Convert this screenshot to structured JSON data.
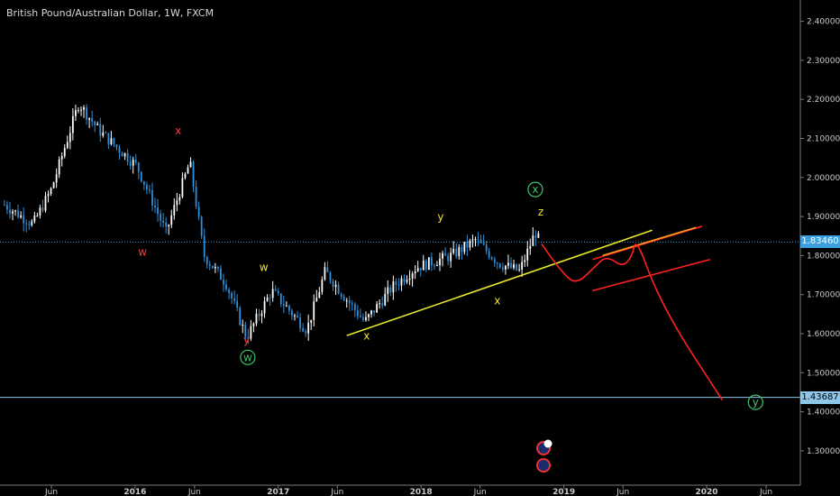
{
  "title": "British Pound/Australian Dollar, 1W, FXCM",
  "price_tags": {
    "current": "1.83460",
    "target": "1.43687"
  },
  "colors": {
    "background": "#000000",
    "candle_up": "#ffffff",
    "candle_down": "#2f8fd8",
    "wave_red": "#ff3b3b",
    "wave_yellow": "#f2e33a",
    "wave_green": "#3cc46a",
    "trendline": "#e6e62a",
    "projection": "#ff2020",
    "current_line": "#3aa0e0",
    "target_line": "#8ec7ea"
  },
  "chart_data": {
    "type": "candlestick",
    "timeframe": "1W",
    "x_ticks": [
      "Jun",
      "2016",
      "Jun",
      "2017",
      "Jun",
      "2018",
      "Jun",
      "2019",
      "Jun",
      "2020",
      "Jun"
    ],
    "y_ticks": [
      "2.40000",
      "2.30000",
      "2.20000",
      "2.10000",
      "2.00000",
      "1.90000",
      "1.80000",
      "1.70000",
      "1.60000",
      "1.50000",
      "1.40000",
      "1.30000"
    ],
    "ylim": [
      1.25,
      2.425
    ],
    "horizontal_lines": [
      1.8346,
      1.43687
    ],
    "price_path_anchors": [
      {
        "date": "2015-02-01",
        "price": 1.93
      },
      {
        "date": "2015-04-15",
        "price": 1.88
      },
      {
        "date": "2015-06-01",
        "price": 1.97
      },
      {
        "date": "2015-08-10",
        "price": 2.19
      },
      {
        "date": "2015-10-01",
        "price": 2.12
      },
      {
        "date": "2016-01-05",
        "price": 2.03
      },
      {
        "date": "2016-03-20",
        "price": 1.86
      },
      {
        "date": "2016-05-20",
        "price": 2.04
      },
      {
        "date": "2016-06-25",
        "price": 1.8
      },
      {
        "date": "2016-08-20",
        "price": 1.73
      },
      {
        "date": "2016-10-12",
        "price": 1.59
      },
      {
        "date": "2016-12-15",
        "price": 1.71
      },
      {
        "date": "2017-03-15",
        "price": 1.61
      },
      {
        "date": "2017-05-01",
        "price": 1.76
      },
      {
        "date": "2017-06-15",
        "price": 1.7
      },
      {
        "date": "2017-08-10",
        "price": 1.63
      },
      {
        "date": "2017-10-20",
        "price": 1.72
      },
      {
        "date": "2017-12-20",
        "price": 1.77
      },
      {
        "date": "2018-03-20",
        "price": 1.8
      },
      {
        "date": "2018-05-20",
        "price": 1.84
      },
      {
        "date": "2018-07-20",
        "price": 1.78
      },
      {
        "date": "2018-09-10",
        "price": 1.76
      },
      {
        "date": "2018-10-20",
        "price": 1.86
      },
      {
        "date": "2018-11-03",
        "price": 1.83
      }
    ],
    "wave_labels": [
      {
        "text": "x",
        "date": "2016-04-20",
        "price": 2.11,
        "color": "red"
      },
      {
        "text": "w",
        "date": "2016-01-20",
        "price": 1.8,
        "color": "red"
      },
      {
        "text": "y",
        "date": "2016-10-12",
        "price": 1.575,
        "color": "red"
      },
      {
        "text": "w",
        "date": "2016-10-15",
        "price": 1.53,
        "color": "green",
        "circled": true
      },
      {
        "text": "w",
        "date": "2016-11-25",
        "price": 1.76,
        "color": "yellow"
      },
      {
        "text": "x",
        "date": "2017-08-15",
        "price": 1.585,
        "color": "yellow"
      },
      {
        "text": "y",
        "date": "2018-02-20",
        "price": 1.89,
        "color": "yellow"
      },
      {
        "text": "x",
        "date": "2018-07-15",
        "price": 1.675,
        "color": "yellow"
      },
      {
        "text": "z",
        "date": "2018-11-03",
        "price": 1.903,
        "color": "yellow"
      },
      {
        "text": "x",
        "date": "2018-10-20",
        "price": 1.96,
        "color": "green",
        "circled": true
      },
      {
        "text": "y",
        "date": "2020-05-05",
        "price": 1.415,
        "color": "green",
        "circled": true
      }
    ],
    "trendlines": [
      {
        "color": "yellow",
        "from": {
          "date": "2017-06-25",
          "price": 1.595
        },
        "to": {
          "date": "2019-08-15",
          "price": 1.865
        }
      },
      {
        "color": "red",
        "from": {
          "date": "2019-03-15",
          "price": 1.79
        },
        "to": {
          "date": "2019-12-20",
          "price": 1.875
        }
      },
      {
        "color": "red",
        "from": {
          "date": "2019-03-15",
          "price": 1.71
        },
        "to": {
          "date": "2020-01-10",
          "price": 1.79
        }
      }
    ],
    "projection_path": [
      {
        "date": "2018-11-05",
        "price": 1.83
      },
      {
        "date": "2018-12-25",
        "price": 1.76
      },
      {
        "date": "2019-02-01",
        "price": 1.725
      },
      {
        "date": "2019-03-20",
        "price": 1.77
      },
      {
        "date": "2019-04-20",
        "price": 1.8
      },
      {
        "date": "2019-06-01",
        "price": 1.77
      },
      {
        "date": "2019-06-25",
        "price": 1.8
      },
      {
        "date": "2019-07-05",
        "price": 1.845
      },
      {
        "date": "2019-08-20",
        "price": 1.72
      },
      {
        "date": "2019-10-20",
        "price": 1.605
      },
      {
        "date": "2019-12-20",
        "price": 1.51
      },
      {
        "date": "2020-02-10",
        "price": 1.43
      }
    ]
  }
}
